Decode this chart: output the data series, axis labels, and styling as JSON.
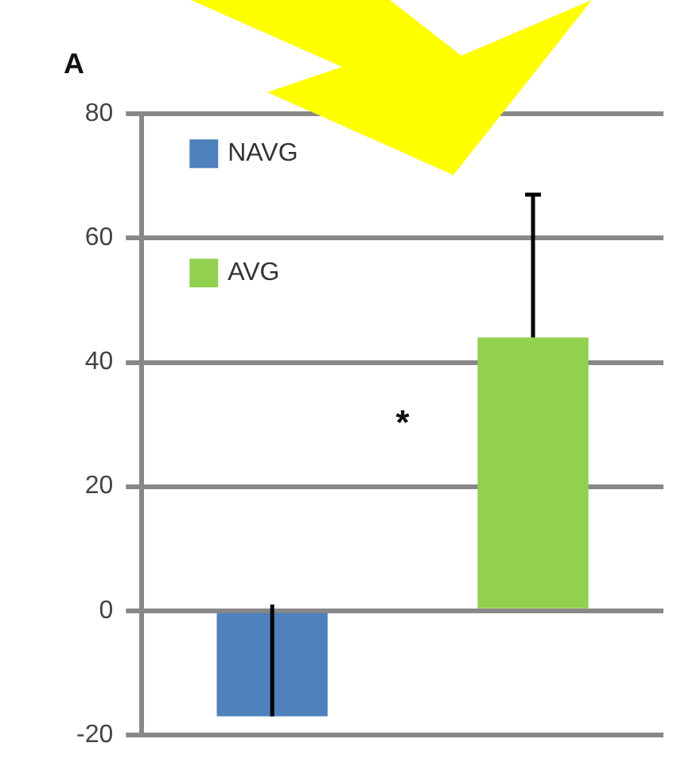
{
  "chart_data": {
    "type": "bar",
    "title": "A",
    "categories": [
      null,
      null
    ],
    "series": [
      {
        "name": "NAVG",
        "color": "#4f81bd",
        "values": [
          -17,
          null
        ],
        "errors": [
          [
            -17,
            1
          ],
          null
        ]
      },
      {
        "name": "AVG",
        "color": "#92d050",
        "values": [
          null,
          44
        ],
        "errors": [
          null,
          [
            44,
            67
          ]
        ]
      }
    ],
    "ylim": [
      -20,
      80
    ],
    "yticks": [
      -20,
      0,
      20,
      40,
      60,
      80
    ],
    "grid": "y",
    "legend": "top left",
    "annotations": [
      "*"
    ]
  }
}
